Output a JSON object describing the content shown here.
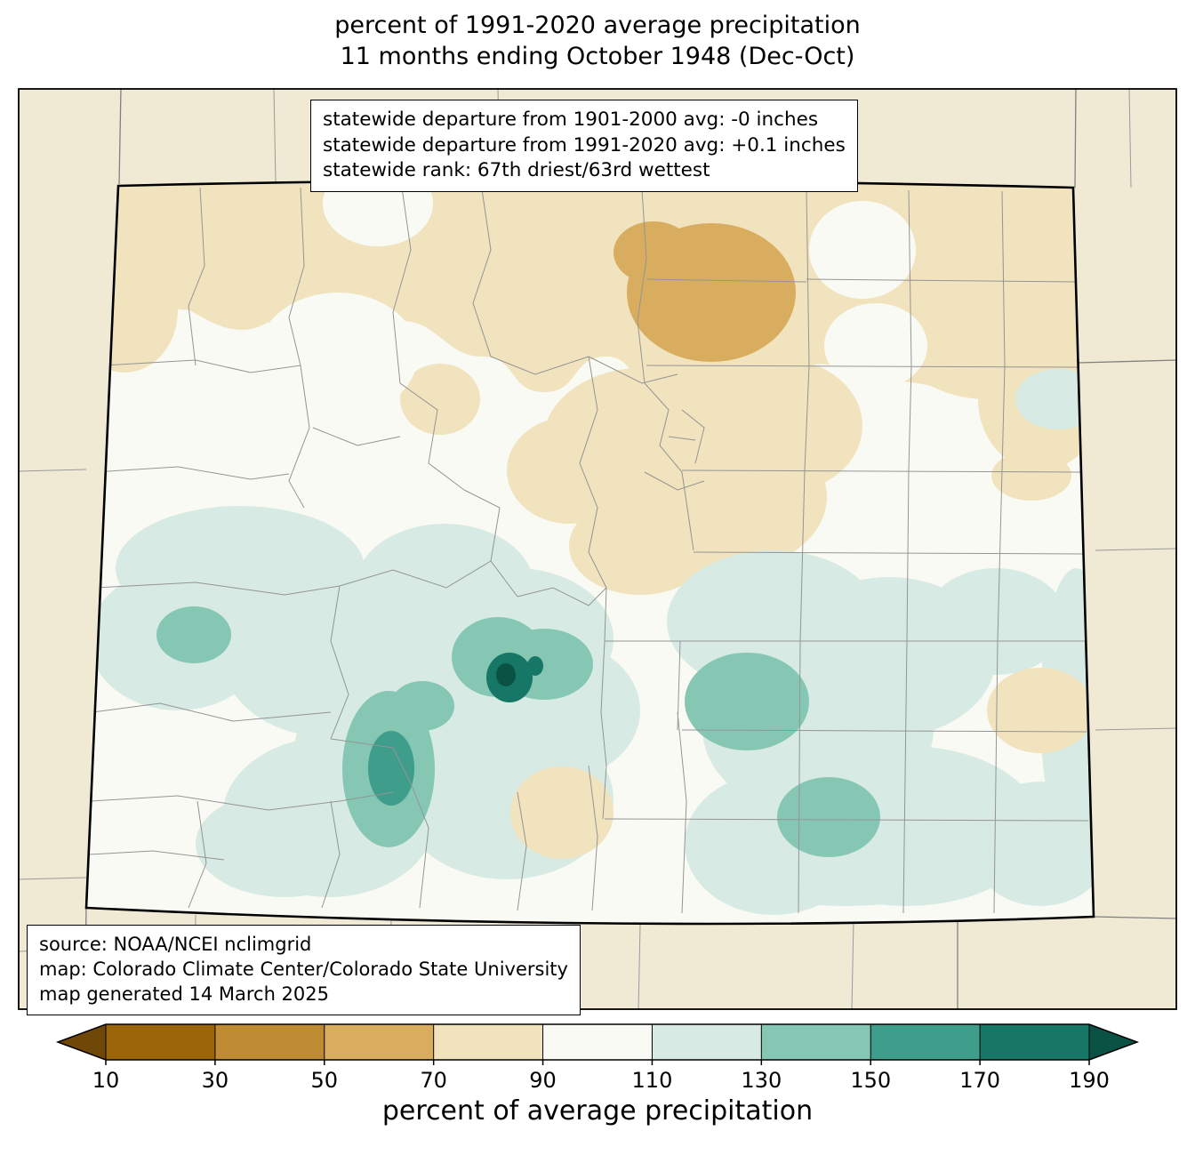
{
  "title": {
    "line1": "percent of 1991-2020 average precipitation",
    "line2": "11 months ending October 1948 (Dec-Oct)"
  },
  "stats_box": {
    "lines": [
      "statewide departure from 1901-2000 avg: -0 inches",
      "statewide departure from 1991-2020 avg: +0.1 inches",
      "statewide rank: 67th driest/63rd wettest"
    ]
  },
  "source_box": {
    "lines": [
      "source: NOAA/NCEI nclimgrid",
      "map: Colorado Climate Center/Colorado State University",
      "map generated 14 March 2025"
    ]
  },
  "colorbar": {
    "label": "percent of average precipitation",
    "ticks": [
      "10",
      "30",
      "50",
      "70",
      "90",
      "110",
      "130",
      "150",
      "170",
      "190"
    ],
    "colors": [
      "#6f4706",
      "#9c6508",
      "#bf8b32",
      "#d9ad60",
      "#f0e3bd",
      "#fafaf5",
      "#d7ebe4",
      "#86c7b4",
      "#3f9d8b",
      "#177767",
      "#0a5244"
    ]
  },
  "map_colors": {
    "outside_background": "#f0ead5",
    "state_fill": "#fafaf5",
    "county_line": "#949494",
    "state_border": "#000000"
  },
  "chart_data": {
    "type": "heatmap",
    "title": "percent of 1991-2020 average precipitation, 11 months ending October 1948 (Dec-Oct)",
    "region": "Colorado (state map with county boundaries)",
    "variable": "percent of average precipitation",
    "colorbar_ticks": [
      10,
      30,
      50,
      70,
      90,
      110,
      130,
      150,
      170,
      190
    ],
    "colorbar_range_open_ended": true,
    "legend_position": "bottom",
    "statewide_departure_1901_2000_inches": -0.0,
    "statewide_departure_1991_2020_inches": 0.1,
    "statewide_rank": "67th driest/63rd wettest",
    "notable_regions": [
      {
        "area": "northern Colorado band",
        "percent_range": "70-90"
      },
      {
        "area": "north-central blob (near Fort Collins/Greeley)",
        "percent_range": "50-70"
      },
      {
        "area": "central mountains core spots",
        "percent_range": "170-190+"
      },
      {
        "area": "central and southwest mountains",
        "percent_range": "130-150"
      },
      {
        "area": "south-central and southeast plains",
        "percent_range": "110-150"
      },
      {
        "area": "small dry patches south-center and east edge",
        "percent_range": "70-90"
      }
    ]
  }
}
